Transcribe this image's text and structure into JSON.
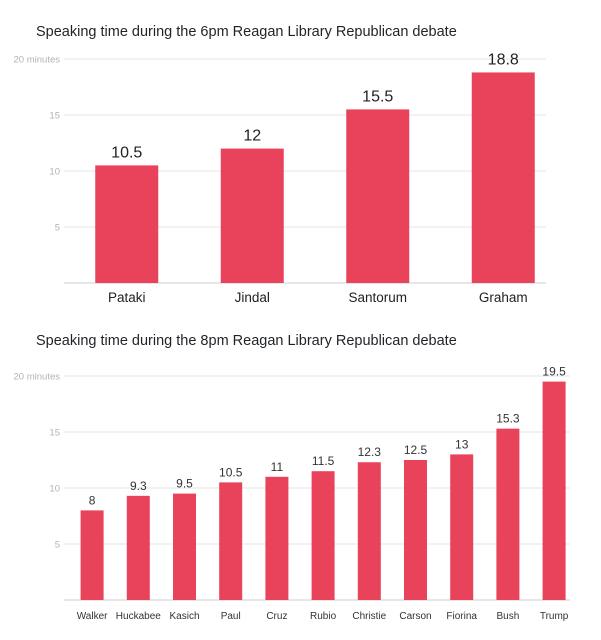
{
  "bar_color": "#e8435a",
  "chart_data": [
    {
      "type": "bar",
      "title": "Speaking time during the 6pm Reagan Library Republican debate",
      "categories": [
        "Pataki",
        "Jindal",
        "Santorum",
        "Graham"
      ],
      "values": [
        10.5,
        12,
        15.5,
        18.8
      ],
      "value_labels": [
        "10.5",
        "12",
        "15.5",
        "18.8"
      ],
      "yticks": [
        5,
        10,
        15,
        20
      ],
      "ytick_labels": [
        "5",
        "10",
        "15",
        "20 minutes"
      ],
      "ylim": [
        0,
        20
      ],
      "xlabel": "",
      "ylabel": ""
    },
    {
      "type": "bar",
      "title": "Speaking time during the 8pm Reagan Library Republican debate",
      "categories": [
        "Walker",
        "Huckabee",
        "Kasich",
        "Paul",
        "Cruz",
        "Rubio",
        "Christie",
        "Carson",
        "Fiorina",
        "Bush",
        "Trump"
      ],
      "values": [
        8,
        9.3,
        9.5,
        10.5,
        11,
        11.5,
        12.3,
        12.5,
        13,
        15.3,
        19.5
      ],
      "value_labels": [
        "8",
        "9.3",
        "9.5",
        "10.5",
        "11",
        "11.5",
        "12.3",
        "12.5",
        "13",
        "15.3",
        "19.5"
      ],
      "yticks": [
        5,
        10,
        15,
        20
      ],
      "ytick_labels": [
        "5",
        "10",
        "15",
        "20 minutes"
      ],
      "ylim": [
        0,
        20
      ],
      "xlabel": "",
      "ylabel": ""
    }
  ]
}
